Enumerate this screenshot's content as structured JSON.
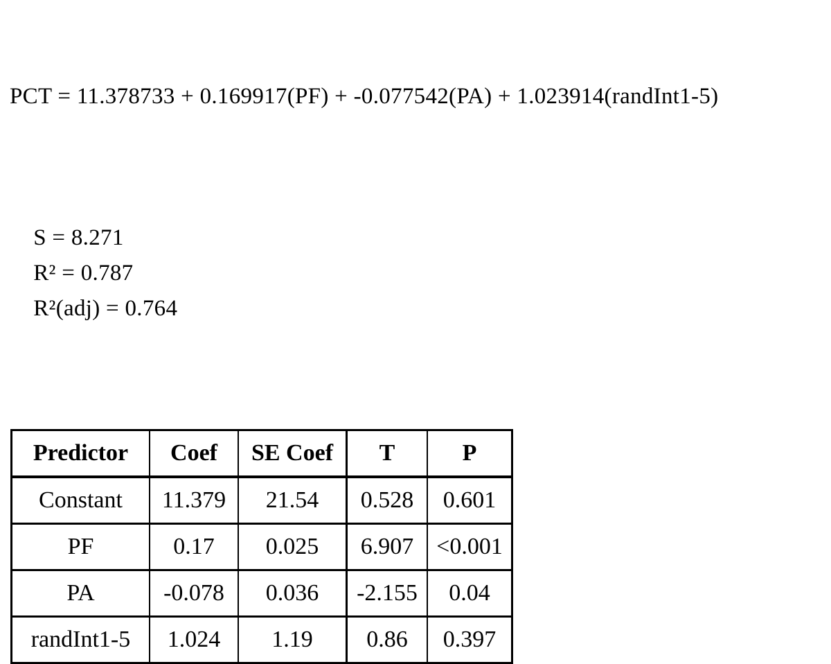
{
  "page": {
    "background_color": "#ffffff",
    "text_color": "#000000"
  },
  "equation": {
    "model": "PCT = 11.378733 + 0.169917(PF) + -0.077542(PA) + 1.023914(randInt1-5)",
    "stats": {
      "s": "S = 8.271",
      "r_squared": "R² = 0.787",
      "r_squared_adj": "R²(adj) = 0.764"
    }
  },
  "regression_table": {
    "headers": [
      "Predictor",
      "Coef",
      "SE Coef",
      "T",
      "P"
    ],
    "rows": [
      [
        "Constant",
        "11.379",
        "21.54",
        "0.528",
        "0.601"
      ],
      [
        "PF",
        "0.17",
        "0.025",
        "6.907",
        "<0.001"
      ],
      [
        "PA",
        "-0.078",
        "0.036",
        "-2.155",
        "0.04"
      ],
      [
        "randInt1-5",
        "1.024",
        "1.19",
        "0.86",
        "0.397"
      ]
    ]
  }
}
